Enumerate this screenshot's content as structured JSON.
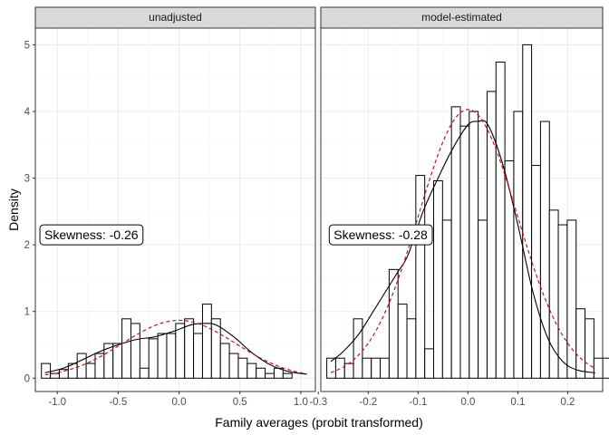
{
  "chart_data": {
    "type": "bar",
    "xlabel": "Family averages (probit transformed)",
    "ylabel": "Density",
    "ylim": [
      -0.2,
      5.25
    ],
    "y_ticks": [
      0,
      1,
      2,
      3,
      4,
      5
    ],
    "grid": true,
    "overlays": [
      "solid black line: kernel density estimate",
      "dashed red line: normal density"
    ],
    "colors": {
      "bars_fill": "#ffffff",
      "bars_stroke": "#000000",
      "kde": "#000000",
      "normal": "#cc0000",
      "strip": "#d9d9d9"
    },
    "panels": [
      {
        "strip_label": "unadjusted",
        "x_ticks": [
          -1.0,
          -0.5,
          0.0,
          0.5,
          1.0
        ],
        "x_tick_labels": [
          "-1.0",
          "-0.5",
          "0.0",
          "0.5",
          "1.0"
        ],
        "xlim": [
          -1.18,
          1.12
        ],
        "annotation": "Skewness: -0.26",
        "annotation_pos": [
          -0.72,
          2.15
        ],
        "bins": {
          "start": -1.13,
          "width": 0.0735,
          "values": [
            0.22,
            0.07,
            0.13,
            0.22,
            0.37,
            0.22,
            0.37,
            0.52,
            0.52,
            0.89,
            0.82,
            0.15,
            0.59,
            0.67,
            0.67,
            0.82,
            0.89,
            0.67,
            1.11,
            0.89,
            0.52,
            0.37,
            0.3,
            0.22,
            0.15,
            0.07,
            0.15,
            0.07
          ]
        },
        "kde": {
          "x": [
            -1.1,
            -0.95,
            -0.8,
            -0.65,
            -0.5,
            -0.35,
            -0.2,
            -0.05,
            0.1,
            0.2,
            0.3,
            0.45,
            0.6,
            0.75,
            0.9,
            1.05
          ],
          "y": [
            0.08,
            0.15,
            0.27,
            0.4,
            0.5,
            0.58,
            0.62,
            0.7,
            0.8,
            0.82,
            0.8,
            0.62,
            0.38,
            0.2,
            0.1,
            0.06
          ]
        },
        "normal": {
          "mean": 0.0,
          "sd": 0.46,
          "scale": 1.0
        }
      },
      {
        "strip_label": "model-estimated",
        "x_ticks": [
          -0.3,
          -0.2,
          -0.1,
          0.0,
          0.1,
          0.2
        ],
        "x_tick_labels": [
          "-0.3",
          "-0.2",
          "-0.1",
          "0.0",
          "0.1",
          "0.2"
        ],
        "xlim": [
          -0.295,
          0.27
        ],
        "annotation": "Skewness: -0.28",
        "annotation_pos": [
          -0.175,
          2.15
        ],
        "bins": {
          "start": -0.283,
          "width": 0.01785,
          "values": [
            0.3,
            0.3,
            0.22,
            0.89,
            0.3,
            0.3,
            0.3,
            1.63,
            1.11,
            0.89,
            3.04,
            0.44,
            2.96,
            2.37,
            4.07,
            3.78,
            4.0,
            2.37,
            4.3,
            4.74,
            3.26,
            4.0,
            5.0,
            3.19,
            3.85,
            2.52,
            2.3,
            2.37,
            1.04,
            0.89,
            0.3,
            0.3,
            0.22,
            0.15,
            0.22
          ]
        },
        "kde": {
          "x": [
            -0.275,
            -0.25,
            -0.22,
            -0.19,
            -0.165,
            -0.14,
            -0.12,
            -0.09,
            -0.06,
            -0.03,
            0.0,
            0.02,
            0.04,
            0.07,
            0.1,
            0.13,
            0.16,
            0.19,
            0.22,
            0.255
          ],
          "y": [
            0.25,
            0.4,
            0.65,
            1.0,
            1.3,
            1.6,
            1.85,
            2.5,
            3.0,
            3.45,
            3.8,
            3.85,
            3.8,
            3.2,
            2.3,
            1.3,
            0.6,
            0.25,
            0.12,
            0.08
          ]
        },
        "normal": {
          "mean": 0.0,
          "sd": 0.099,
          "scale": 1.0
        }
      }
    ]
  }
}
